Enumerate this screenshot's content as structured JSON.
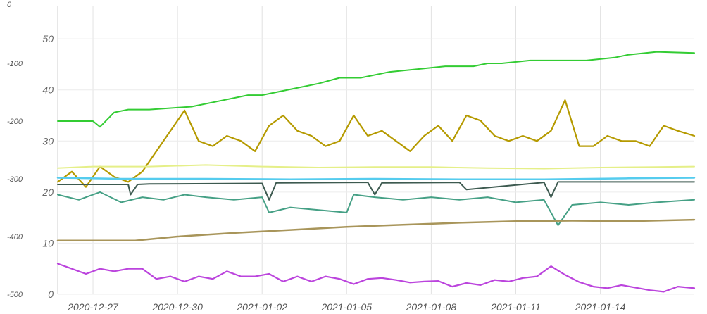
{
  "chart_data": {
    "type": "line",
    "grid": true,
    "x_ticks": [
      "2020-12-27",
      "2020-12-30",
      "2021-01-02",
      "2021-01-05",
      "2021-01-08",
      "2021-01-11",
      "2021-01-14"
    ],
    "xlim": [
      "2020-12-25T18:00",
      "2021-01-17T08:00"
    ],
    "y_left": {
      "ticks": [
        "0",
        "-100",
        "-200",
        "-300",
        "-400",
        "-500"
      ],
      "ylim": [
        -500,
        0
      ]
    },
    "y_right": {
      "ticks": [
        "0",
        "10",
        "20",
        "30",
        "40",
        "50"
      ],
      "ylim": [
        0,
        56.5
      ]
    },
    "series": [
      {
        "axis": "left",
        "color": "#33cc33",
        "x": [
          "2020-12-25T18:00",
          "2020-12-27T00:00",
          "2020-12-27T06:00",
          "2020-12-27T18:00",
          "2020-12-28T06:00",
          "2020-12-29T00:00",
          "2020-12-30T12:00",
          "2020-12-31T12:00",
          "2021-01-01T12:00",
          "2021-01-02T00:00",
          "2021-01-03T00:00",
          "2021-01-04T00:00",
          "2021-01-04T18:00",
          "2021-01-05T12:00",
          "2021-01-06T12:00",
          "2021-01-07T12:00",
          "2021-01-08T12:00",
          "2021-01-09T12:00",
          "2021-01-10T00:00",
          "2021-01-10T12:00",
          "2021-01-11T12:00",
          "2021-01-12T12:00",
          "2021-01-13T12:00",
          "2021-01-14T12:00",
          "2021-01-15T00:00",
          "2021-01-16T00:00",
          "2021-01-17T08:00"
        ],
        "y": [
          -200,
          -200,
          -210,
          -185,
          -180,
          -180,
          -175,
          -165,
          -155,
          -155,
          -145,
          -135,
          -125,
          -125,
          -115,
          -110,
          -105,
          -105,
          -100,
          -100,
          -95,
          -95,
          -95,
          -90,
          -85,
          -80,
          -82
        ]
      },
      {
        "axis": "right",
        "color": "#b59a00",
        "x": [
          "2020-12-25T18:00",
          "2020-12-26T06:00",
          "2020-12-26T18:00",
          "2020-12-27T06:00",
          "2020-12-27T18:00",
          "2020-12-28T06:00",
          "2020-12-28T18:00",
          "2020-12-29T06:00",
          "2020-12-29T18:00",
          "2020-12-30T06:00",
          "2020-12-30T18:00",
          "2020-12-31T06:00",
          "2020-12-31T18:00",
          "2021-01-01T06:00",
          "2021-01-01T18:00",
          "2021-01-02T06:00",
          "2021-01-02T18:00",
          "2021-01-03T06:00",
          "2021-01-03T18:00",
          "2021-01-04T06:00",
          "2021-01-04T18:00",
          "2021-01-05T06:00",
          "2021-01-05T18:00",
          "2021-01-06T06:00",
          "2021-01-06T18:00",
          "2021-01-07T06:00",
          "2021-01-07T18:00",
          "2021-01-08T06:00",
          "2021-01-08T18:00",
          "2021-01-09T06:00",
          "2021-01-09T18:00",
          "2021-01-10T06:00",
          "2021-01-10T18:00",
          "2021-01-11T06:00",
          "2021-01-11T18:00",
          "2021-01-12T06:00",
          "2021-01-12T18:00",
          "2021-01-13T06:00",
          "2021-01-13T18:00",
          "2021-01-14T06:00",
          "2021-01-14T18:00",
          "2021-01-15T06:00",
          "2021-01-15T18:00",
          "2021-01-16T06:00",
          "2021-01-16T18:00",
          "2021-01-17T08:00"
        ],
        "y": [
          22,
          24,
          21,
          25,
          23,
          22,
          24,
          28,
          32,
          36,
          30,
          29,
          31,
          30,
          28,
          33,
          35,
          32,
          31,
          29,
          30,
          35,
          31,
          32,
          30,
          28,
          31,
          33,
          30,
          35,
          34,
          31,
          30,
          31,
          30,
          32,
          38,
          29,
          29,
          31,
          30,
          30,
          29,
          33,
          32,
          31
        ]
      },
      {
        "axis": "right",
        "color": "#e5ef88",
        "x": [
          "2020-12-25T18:00",
          "2020-12-27T00:00",
          "2020-12-29T00:00",
          "2020-12-31T00:00",
          "2021-01-02T00:00",
          "2021-01-04T00:00",
          "2021-01-06T00:00",
          "2021-01-08T00:00",
          "2021-01-10T00:00",
          "2021-01-12T00:00",
          "2021-01-14T00:00",
          "2021-01-16T00:00",
          "2021-01-17T08:00"
        ],
        "y": [
          24.7,
          25,
          25,
          25.3,
          25,
          24.8,
          24.9,
          24.9,
          24.7,
          24.6,
          24.8,
          24.9,
          25
        ]
      },
      {
        "axis": "right",
        "color": "#55ccee",
        "x": [
          "2020-12-25T18:00",
          "2020-12-28T00:00",
          "2020-12-31T00:00",
          "2021-01-03T00:00",
          "2021-01-06T00:00",
          "2021-01-09T00:00",
          "2021-01-12T00:00",
          "2021-01-15T00:00",
          "2021-01-17T08:00"
        ],
        "y": [
          22.8,
          22.6,
          22.6,
          22.5,
          22.6,
          22.5,
          22.5,
          22.7,
          22.8
        ]
      },
      {
        "axis": "right",
        "color": "#3d5a50",
        "x": [
          "2020-12-25T18:00",
          "2020-12-28T06:00",
          "2020-12-28T08:00",
          "2020-12-28T14:00",
          "2020-12-29T00:00",
          "2021-01-02T00:00",
          "2021-01-02T06:00",
          "2021-01-02T12:00",
          "2021-01-05T18:00",
          "2021-01-06T00:00",
          "2021-01-06T06:00",
          "2021-01-09T00:00",
          "2021-01-09T06:00",
          "2021-01-12T00:00",
          "2021-01-12T06:00",
          "2021-01-12T12:00",
          "2021-01-17T08:00"
        ],
        "y": [
          21.5,
          21.5,
          19.5,
          21.5,
          21.6,
          21.7,
          18.5,
          21.8,
          21.9,
          19.5,
          21.8,
          21.9,
          20.5,
          21.9,
          19.0,
          22.0,
          22.0
        ]
      },
      {
        "axis": "right",
        "color": "#45a085",
        "x": [
          "2020-12-25T18:00",
          "2020-12-26T12:00",
          "2020-12-27T06:00",
          "2020-12-28T00:00",
          "2020-12-28T18:00",
          "2020-12-29T12:00",
          "2020-12-30T06:00",
          "2020-12-31T00:00",
          "2021-01-01T00:00",
          "2021-01-02T00:00",
          "2021-01-02T06:00",
          "2021-01-03T00:00",
          "2021-01-04T00:00",
          "2021-01-05T00:00",
          "2021-01-05T06:00",
          "2021-01-06T00:00",
          "2021-01-07T00:00",
          "2021-01-08T00:00",
          "2021-01-09T00:00",
          "2021-01-10T00:00",
          "2021-01-11T00:00",
          "2021-01-12T00:00",
          "2021-01-12T12:00",
          "2021-01-13T00:00",
          "2021-01-14T00:00",
          "2021-01-15T00:00",
          "2021-01-16T00:00",
          "2021-01-17T08:00"
        ],
        "y": [
          19.5,
          18.5,
          20,
          18,
          19,
          18.5,
          19.5,
          19,
          18.5,
          19,
          16,
          17,
          16.5,
          16,
          19.5,
          19,
          18.5,
          19,
          18.5,
          19,
          18,
          18.5,
          13.5,
          17.5,
          18,
          17.5,
          18,
          18.5
        ]
      },
      {
        "axis": "right",
        "color": "#a8955a",
        "x": [
          "2020-12-25T18:00",
          "2020-12-27T00:00",
          "2020-12-28T12:00",
          "2020-12-30T00:00",
          "2021-01-01T00:00",
          "2021-01-03T00:00",
          "2021-01-05T00:00",
          "2021-01-07T00:00",
          "2021-01-09T00:00",
          "2021-01-11T00:00",
          "2021-01-13T00:00",
          "2021-01-15T00:00",
          "2021-01-17T08:00"
        ],
        "y": [
          10.5,
          10.5,
          10.5,
          11.3,
          12,
          12.6,
          13.2,
          13.6,
          14,
          14.3,
          14.4,
          14.3,
          14.6
        ]
      },
      {
        "axis": "right",
        "color": "#bb44dd",
        "x": [
          "2020-12-25T18:00",
          "2020-12-26T06:00",
          "2020-12-26T18:00",
          "2020-12-27T06:00",
          "2020-12-27T18:00",
          "2020-12-28T06:00",
          "2020-12-28T18:00",
          "2020-12-29T06:00",
          "2020-12-29T18:00",
          "2020-12-30T06:00",
          "2020-12-30T18:00",
          "2020-12-31T06:00",
          "2020-12-31T18:00",
          "2021-01-01T06:00",
          "2021-01-01T18:00",
          "2021-01-02T06:00",
          "2021-01-02T18:00",
          "2021-01-03T06:00",
          "2021-01-03T18:00",
          "2021-01-04T06:00",
          "2021-01-04T18:00",
          "2021-01-05T06:00",
          "2021-01-05T18:00",
          "2021-01-06T06:00",
          "2021-01-06T18:00",
          "2021-01-07T06:00",
          "2021-01-07T18:00",
          "2021-01-08T06:00",
          "2021-01-08T18:00",
          "2021-01-09T06:00",
          "2021-01-09T18:00",
          "2021-01-10T06:00",
          "2021-01-10T18:00",
          "2021-01-11T06:00",
          "2021-01-11T18:00",
          "2021-01-12T06:00",
          "2021-01-12T18:00",
          "2021-01-13T06:00",
          "2021-01-13T18:00",
          "2021-01-14T06:00",
          "2021-01-14T18:00",
          "2021-01-15T06:00",
          "2021-01-15T18:00",
          "2021-01-16T06:00",
          "2021-01-16T18:00",
          "2021-01-17T08:00"
        ],
        "y": [
          6,
          5,
          4,
          5,
          4.5,
          5,
          5,
          3,
          3.5,
          2.5,
          3.5,
          3,
          4.5,
          3.5,
          3.5,
          4,
          2.5,
          3.5,
          2.5,
          3.5,
          3,
          2,
          3,
          3.2,
          2.8,
          2.3,
          2.5,
          2.6,
          1.5,
          2.2,
          1.8,
          2.8,
          2.5,
          3.2,
          3.5,
          5.5,
          3.8,
          2.4,
          1.5,
          1.2,
          1.8,
          1.3,
          0.8,
          0.5,
          1.5,
          1.2
        ]
      }
    ]
  }
}
